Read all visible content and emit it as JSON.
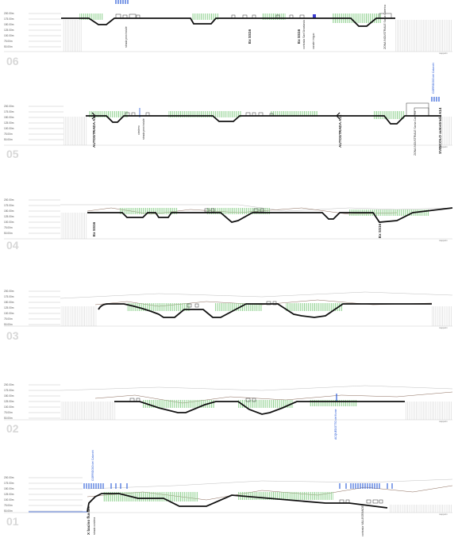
{
  "axis_ticks": [
    "200.00m",
    "175.00m",
    "150.00m",
    "125.00m",
    "100.00m",
    "75.00m",
    "50.00m"
  ],
  "unit_label": "mappe/m",
  "sections": [
    {
      "number": "06",
      "labels": [
        {
          "text": "strada provinciale",
          "style": "normal"
        },
        {
          "text": "Ex SS16",
          "style": "big"
        },
        {
          "text": "Ex SS16",
          "style": "big"
        },
        {
          "text": "contrada Sant'Anastasia",
          "style": "normal"
        },
        {
          "text": "canale irriguo",
          "style": "normal"
        },
        {
          "text": "ZONA INDUSTRIALE Santa Caterina",
          "style": "normal"
        }
      ],
      "blue_labels": []
    },
    {
      "number": "05",
      "labels": [
        {
          "text": "AUTOSTRADA A14",
          "style": "big"
        },
        {
          "text": "cimitero",
          "style": "normal"
        },
        {
          "text": "strada provinciale",
          "style": "normal"
        },
        {
          "text": "AUTOSTRADA A14",
          "style": "big"
        },
        {
          "text": "ZONA INDUSTRIALE Santa Caterina",
          "style": "normal"
        },
        {
          "text": "SVINCOLO autostrada A14",
          "style": "big"
        }
      ],
      "blue_labels": [
        {
          "text": "CORRIDOIO dei Calanchi"
        }
      ]
    },
    {
      "number": "04",
      "labels": [
        {
          "text": "Ex SS16",
          "style": "big"
        },
        {
          "text": "Ex SS16",
          "style": "big"
        }
      ],
      "blue_labels": []
    },
    {
      "number": "03",
      "labels": [],
      "blue_labels": []
    },
    {
      "number": "02",
      "labels": [],
      "blue_labels": [
        {
          "text": "ACQUEDOTTO del fiume"
        }
      ]
    },
    {
      "number": "01",
      "labels": [
        {
          "text": "X bacino fluviale",
          "style": "big"
        },
        {
          "text": "strada costiera",
          "style": "normal"
        },
        {
          "text": "contrada VALLEGRANDE",
          "style": "normal"
        }
      ],
      "blue_labels": [
        {
          "text": "CORRIDOIO dei Calanchi"
        }
      ]
    }
  ],
  "colors": {
    "terrain": "#111111",
    "vegetation": "#8fd18f",
    "existing_line": "#8a6a5a",
    "grey_line": "#bfbfbf",
    "blue": "#2a5bd7",
    "section_number": "#d8d8d8"
  }
}
